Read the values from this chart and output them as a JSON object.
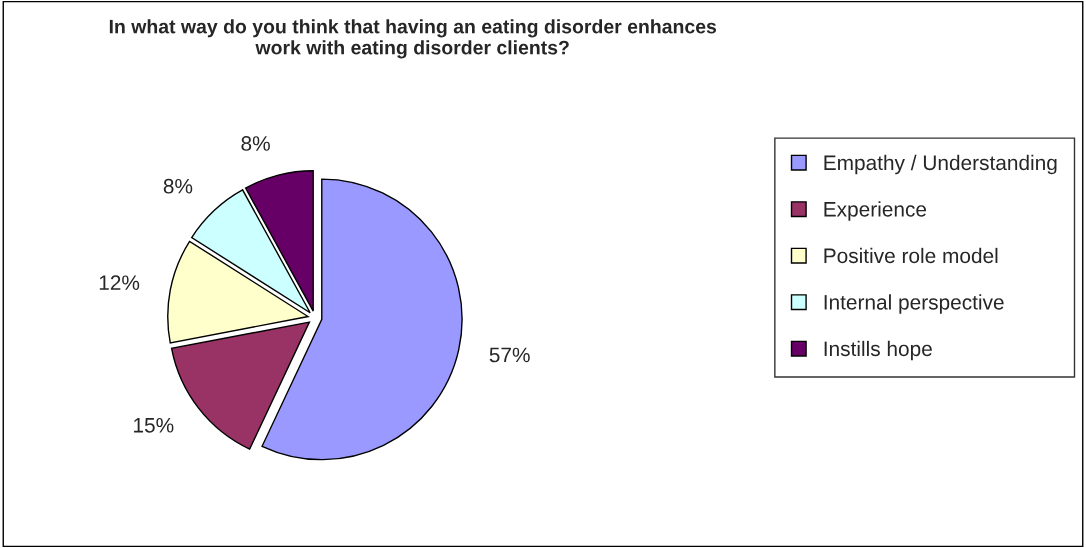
{
  "chart_data": {
    "type": "pie",
    "title": "In what way do you think that having an eating disorder enhances\nwork with eating disorder clients?",
    "categories": [
      "Empathy / Understanding",
      "Experience",
      "Positive role model",
      "Internal perspective",
      "Instills hope"
    ],
    "values": [
      57,
      15,
      12,
      8,
      8
    ],
    "value_labels": [
      "57%",
      "15%",
      "12%",
      "8%",
      "8%"
    ],
    "colors": [
      "#9999ff",
      "#993366",
      "#ffffcc",
      "#ccffff",
      "#660066"
    ],
    "legend": "right"
  }
}
